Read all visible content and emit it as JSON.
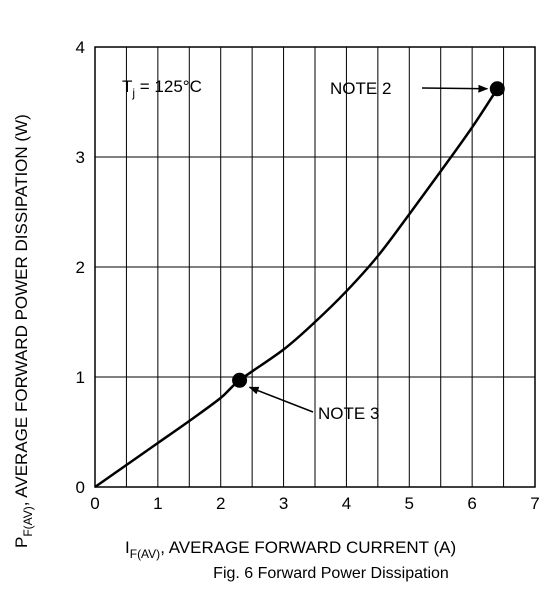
{
  "chart_data": {
    "type": "line",
    "title": "",
    "caption": "Fig. 6  Forward Power Dissipation",
    "xlabel": {
      "main": "I",
      "sub": "F(AV)",
      "rest": ", AVERAGE FORWARD CURRENT (A)"
    },
    "ylabel": {
      "main": "P",
      "sub": "F(AV)",
      "rest": ", AVERAGE FORWARD POWER DISSIPATION (W)"
    },
    "xlim": [
      0,
      7
    ],
    "ylim": [
      0,
      4
    ],
    "x_ticks": [
      "0",
      "1",
      "2",
      "3",
      "4",
      "5",
      "6",
      "7"
    ],
    "y_ticks": [
      "0",
      "1",
      "2",
      "3",
      "4"
    ],
    "grid": true,
    "series": [
      {
        "x": [
          0,
          0.5,
          1.0,
          1.5,
          2.0,
          2.3,
          3.0,
          3.5,
          4.0,
          4.5,
          5.0,
          5.5,
          6.0,
          6.4
        ],
        "y": [
          0,
          0.2,
          0.4,
          0.6,
          0.81,
          0.97,
          1.25,
          1.5,
          1.78,
          2.1,
          2.48,
          2.87,
          3.27,
          3.62
        ]
      }
    ],
    "markers": [
      {
        "x": 6.4,
        "y": 3.62,
        "label": "NOTE 2"
      },
      {
        "x": 2.3,
        "y": 0.97,
        "label": "NOTE 3"
      }
    ],
    "annotation": {
      "main": "T",
      "sub": "j",
      "rest": " = 125°C"
    }
  }
}
